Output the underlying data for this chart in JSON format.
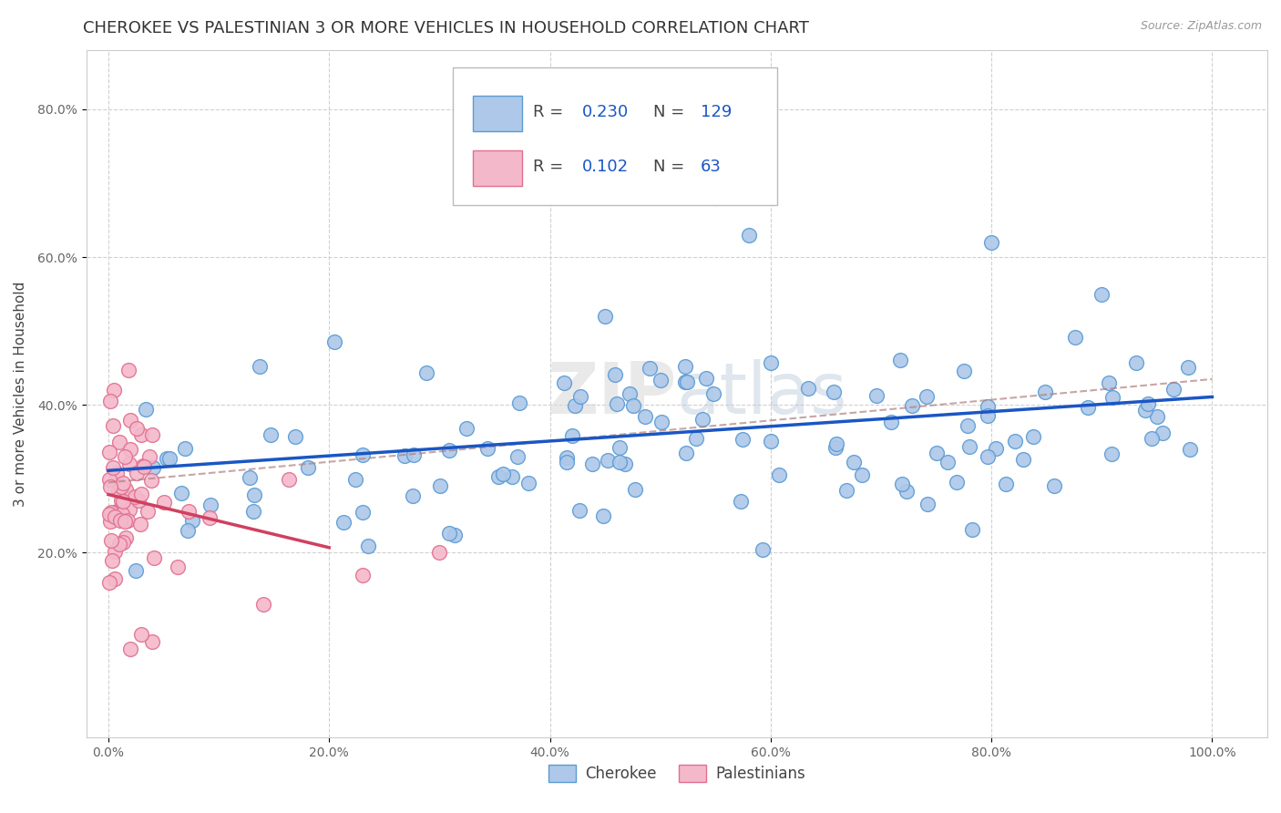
{
  "title": "CHEROKEE VS PALESTINIAN 3 OR MORE VEHICLES IN HOUSEHOLD CORRELATION CHART",
  "source": "Source: ZipAtlas.com",
  "ylabel": "3 or more Vehicles in Household",
  "xlim": [
    -0.02,
    1.05
  ],
  "ylim": [
    -0.05,
    0.88
  ],
  "xticks": [
    0.0,
    0.2,
    0.4,
    0.6,
    0.8,
    1.0
  ],
  "yticks": [
    0.2,
    0.4,
    0.6,
    0.8
  ],
  "xtick_labels": [
    "0.0%",
    "20.0%",
    "40.0%",
    "60.0%",
    "80.0%",
    "100.0%"
  ],
  "ytick_labels": [
    "20.0%",
    "40.0%",
    "60.0%",
    "80.0%"
  ],
  "cherokee_fill": "#adc8e8",
  "cherokee_edge": "#5b9bd5",
  "palestinian_fill": "#f4b8cb",
  "palestinian_edge": "#e07090",
  "trend_cherokee_color": "#1a56c4",
  "trend_palestinian_color": "#d04060",
  "trend_dashed_color": "#c0a0a0",
  "background_color": "#ffffff",
  "grid_color": "#d0d0d0",
  "title_fontsize": 13,
  "axis_label_fontsize": 11,
  "tick_fontsize": 10,
  "watermark_zip": "ZIP",
  "watermark_atlas": "atlas",
  "R_cherokee": 0.23,
  "N_cherokee": 129,
  "R_palestinian": 0.102,
  "N_palestinian": 63
}
